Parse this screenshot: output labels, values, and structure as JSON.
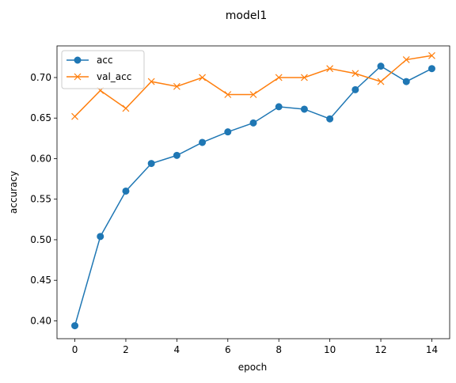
{
  "chart_data": {
    "type": "line",
    "title": "model1",
    "xlabel": "epoch",
    "ylabel": "accuracy",
    "x": [
      0,
      1,
      2,
      3,
      4,
      5,
      6,
      7,
      8,
      9,
      10,
      11,
      12,
      13,
      14
    ],
    "x_ticks": [
      "0",
      "2",
      "4",
      "6",
      "8",
      "10",
      "12",
      "14"
    ],
    "y_ticks": [
      "0.40",
      "0.45",
      "0.50",
      "0.55",
      "0.60",
      "0.65",
      "0.70"
    ],
    "xlim": [
      -0.7,
      14.7
    ],
    "ylim": [
      0.378,
      0.739
    ],
    "legend_position": "top-left",
    "grid": false,
    "series": [
      {
        "name": "acc",
        "color": "#1f77b4",
        "marker": "circle",
        "values": [
          0.394,
          0.504,
          0.56,
          0.594,
          0.604,
          0.62,
          0.633,
          0.644,
          0.664,
          0.661,
          0.649,
          0.685,
          0.714,
          0.695,
          0.711
        ]
      },
      {
        "name": "val_acc",
        "color": "#ff7f0e",
        "marker": "x",
        "values": [
          0.652,
          0.684,
          0.662,
          0.695,
          0.689,
          0.7,
          0.679,
          0.679,
          0.7,
          0.7,
          0.711,
          0.705,
          0.695,
          0.722,
          0.727
        ]
      }
    ]
  }
}
